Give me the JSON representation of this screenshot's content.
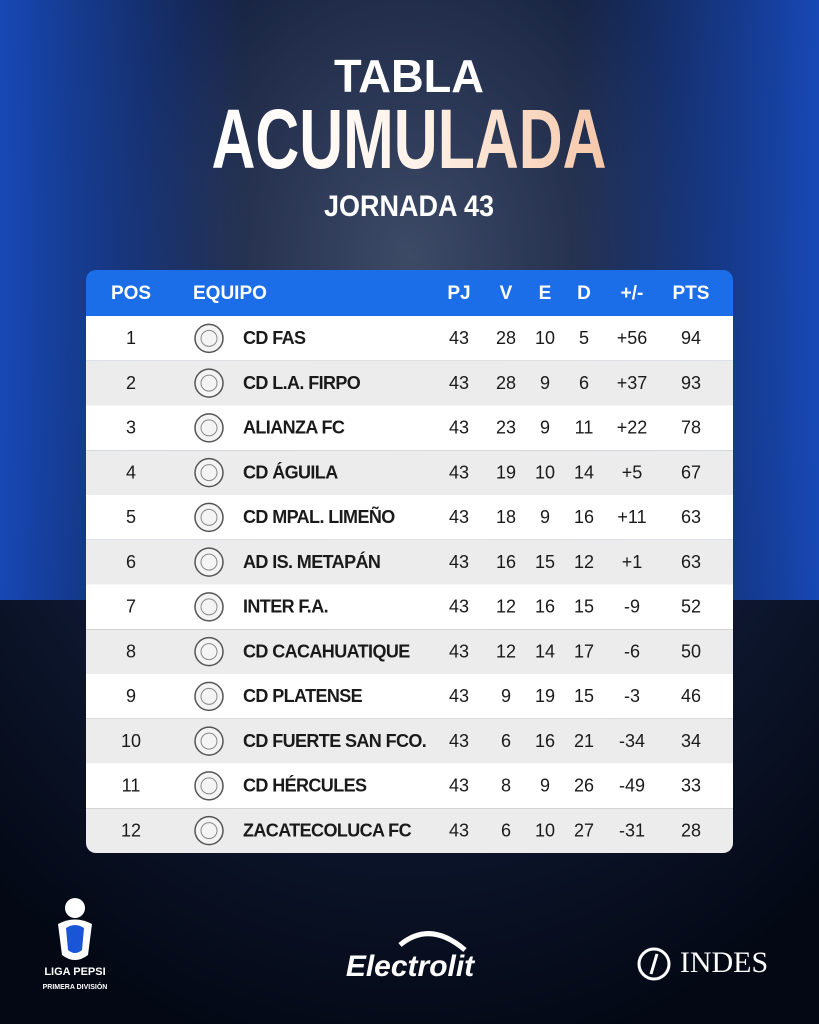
{
  "header": {
    "title_line1": "TABLA",
    "title_line2": "ACUMULADA",
    "subtitle": "JORNADA 43"
  },
  "table": {
    "columns": [
      "POS",
      "EQUIPO",
      "PJ",
      "V",
      "E",
      "D",
      "+/-",
      "PTS"
    ],
    "rows": [
      [
        "1",
        "CD FAS",
        "43",
        "28",
        "10",
        "5",
        "+56",
        "94"
      ],
      [
        "2",
        "CD L.A. FIRPO",
        "43",
        "28",
        "9",
        "6",
        "+37",
        "93"
      ],
      [
        "3",
        "ALIANZA FC",
        "43",
        "23",
        "9",
        "11",
        "+22",
        "78"
      ],
      [
        "4",
        "CD ÁGUILA",
        "43",
        "19",
        "10",
        "14",
        "+5",
        "67"
      ],
      [
        "5",
        "CD MPAL. LIMEÑO",
        "43",
        "18",
        "9",
        "16",
        "+11",
        "63"
      ],
      [
        "6",
        "AD IS. METAPÁN",
        "43",
        "16",
        "15",
        "12",
        "+1",
        "63"
      ],
      [
        "7",
        "INTER F.A.",
        "43",
        "12",
        "16",
        "15",
        "-9",
        "52"
      ],
      [
        "8",
        "CD CACAHUATIQUE",
        "43",
        "12",
        "14",
        "17",
        "-6",
        "50"
      ],
      [
        "9",
        "CD PLATENSE",
        "43",
        "9",
        "19",
        "15",
        "-3",
        "46"
      ],
      [
        "10",
        "CD FUERTE SAN FCO.",
        "43",
        "6",
        "16",
        "21",
        "-34",
        "34"
      ],
      [
        "11",
        "CD HÉRCULES",
        "43",
        "8",
        "9",
        "26",
        "-49",
        "33"
      ],
      [
        "12",
        "ZACATECOLUCA FC",
        "43",
        "6",
        "10",
        "27",
        "-31",
        "28"
      ]
    ]
  },
  "footer": {
    "league": "LIGA PEPSI",
    "division": "PRIMERA DIVISIÓN",
    "sponsor": "Electrolit",
    "partner": "INDES"
  }
}
